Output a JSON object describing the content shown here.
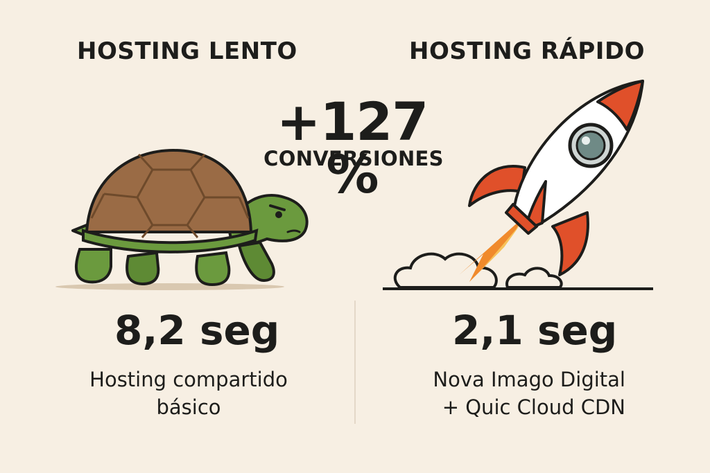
{
  "left": {
    "heading": "HOSTING LENTO",
    "time": "8,2 seg",
    "desc_line1": "Hosting compartido",
    "desc_line2": "básico"
  },
  "right": {
    "heading": "HOSTING RÁPIDO",
    "time": "2,1 seg",
    "desc_line1": "Nova Imago Digital",
    "desc_line2": "+ Quic Cloud CDN"
  },
  "stat": {
    "value": "+127 %",
    "label": "CONVERSIONES"
  },
  "icons": {
    "left": "turtle-icon",
    "right": "rocket-icon"
  },
  "colors": {
    "background": "#f7efe3",
    "text": "#1d1d1b",
    "turtle_shell": "#9a6b45",
    "turtle_skin": "#6b9a3e",
    "rocket_red": "#e0502a"
  }
}
